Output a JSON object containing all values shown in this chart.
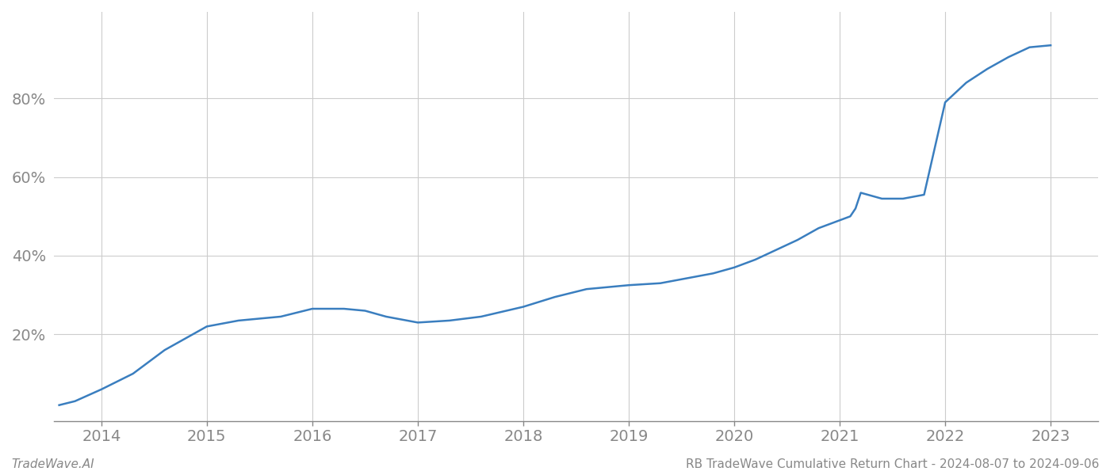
{
  "x_years": [
    2013.6,
    2013.75,
    2014.0,
    2014.3,
    2014.6,
    2015.0,
    2015.3,
    2015.7,
    2016.0,
    2016.3,
    2016.5,
    2016.7,
    2017.0,
    2017.3,
    2017.6,
    2018.0,
    2018.3,
    2018.6,
    2019.0,
    2019.3,
    2019.6,
    2019.8,
    2020.0,
    2020.2,
    2020.4,
    2020.6,
    2020.8,
    2021.0,
    2021.1,
    2021.15,
    2021.2,
    2021.4,
    2021.6,
    2021.8,
    2022.0,
    2022.2,
    2022.4,
    2022.6,
    2022.8,
    2023.0
  ],
  "y_values": [
    0.02,
    0.03,
    0.06,
    0.1,
    0.16,
    0.22,
    0.235,
    0.245,
    0.265,
    0.265,
    0.26,
    0.245,
    0.23,
    0.235,
    0.245,
    0.27,
    0.295,
    0.315,
    0.325,
    0.33,
    0.345,
    0.355,
    0.37,
    0.39,
    0.415,
    0.44,
    0.47,
    0.49,
    0.5,
    0.52,
    0.56,
    0.545,
    0.545,
    0.555,
    0.79,
    0.84,
    0.875,
    0.905,
    0.93,
    0.935
  ],
  "line_color": "#3a7ebf",
  "background_color": "#ffffff",
  "grid_color": "#cccccc",
  "axis_color": "#888888",
  "tick_label_color": "#888888",
  "footer_left": "TradeWave.AI",
  "footer_right": "RB TradeWave Cumulative Return Chart - 2024-08-07 to 2024-09-06",
  "ytick_labels": [
    "20%",
    "40%",
    "60%",
    "80%"
  ],
  "ytick_values": [
    0.2,
    0.4,
    0.6,
    0.8
  ],
  "xtick_labels": [
    "2014",
    "2015",
    "2016",
    "2017",
    "2018",
    "2019",
    "2020",
    "2021",
    "2022",
    "2023"
  ],
  "xtick_values": [
    2014,
    2015,
    2016,
    2017,
    2018,
    2019,
    2020,
    2021,
    2022,
    2023
  ],
  "xlim": [
    2013.55,
    2023.45
  ],
  "ylim": [
    -0.02,
    1.02
  ],
  "line_width": 1.8,
  "footer_fontsize": 11,
  "tick_fontsize": 14
}
